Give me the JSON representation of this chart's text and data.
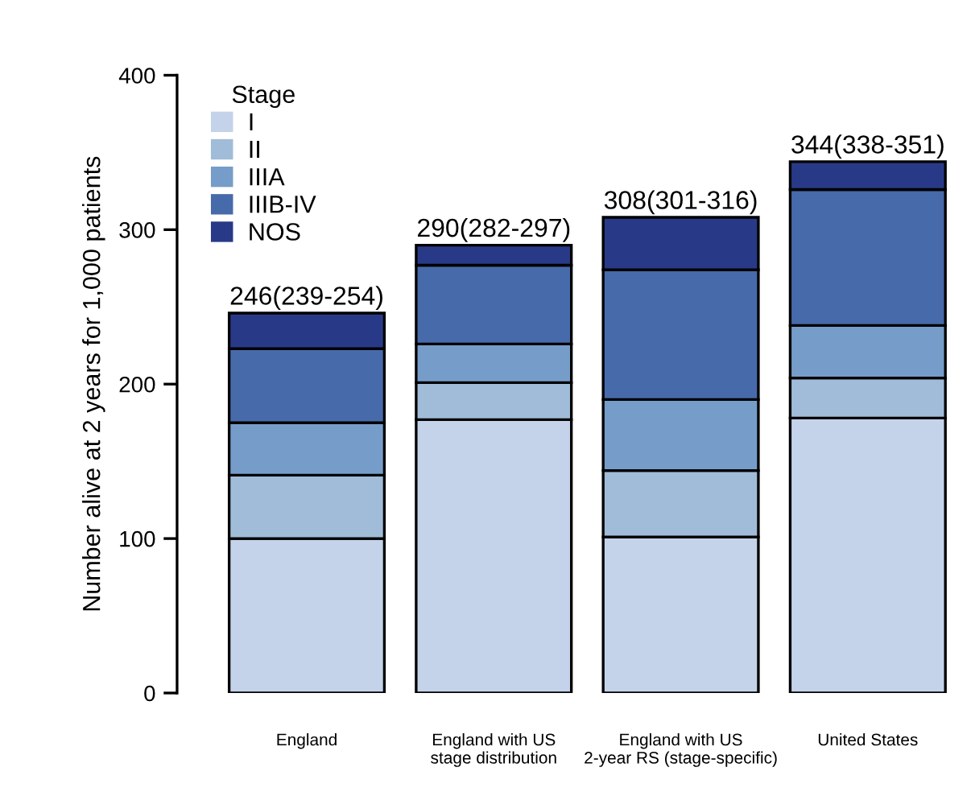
{
  "chart_data": {
    "type": "bar",
    "stacked": true,
    "ylabel": "Number alive at 2 years for 1,000 patients",
    "legend_title": "Stage",
    "legend": "top left",
    "categories": [
      "England",
      "England with US\nstage distribution",
      "England with US\n2-year RS (stage-specific)",
      "United States"
    ],
    "series": [
      {
        "name": "I",
        "color": "#c4d3e9",
        "values": [
          100,
          177,
          101,
          178
        ]
      },
      {
        "name": "II",
        "color": "#a0bcd8",
        "values": [
          41,
          24,
          43,
          26
        ]
      },
      {
        "name": "IIIA",
        "color": "#769dc9",
        "values": [
          34,
          25,
          46,
          34
        ]
      },
      {
        "name": "IIIB-IV",
        "color": "#476aab",
        "values": [
          48,
          51,
          84,
          88
        ]
      },
      {
        "name": "NOS",
        "color": "#283a87",
        "values": [
          23,
          13,
          34,
          18
        ]
      }
    ],
    "totals": [
      "246(239-254)",
      "290(282-297)",
      "308(301-316)",
      "344(338-351)"
    ],
    "ylim": [
      0,
      400
    ],
    "yticks": [
      0,
      100,
      200,
      300,
      400
    ],
    "grid": false
  }
}
